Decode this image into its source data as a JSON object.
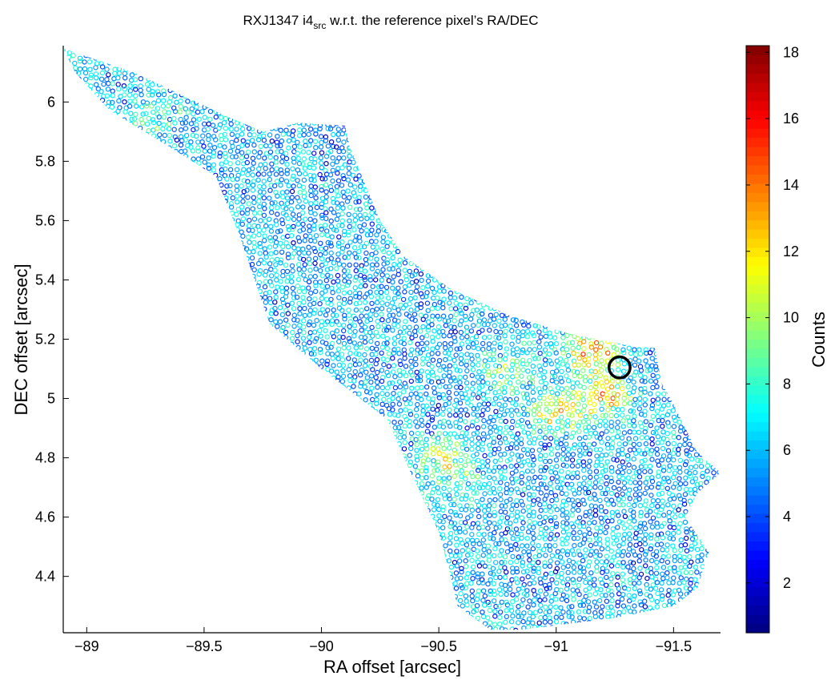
{
  "chart_data": {
    "type": "scatter",
    "title": {
      "prefix": "RXJ1347 i4",
      "subscript": "src",
      "suffix": " w.r.t. the reference pixel’s RA/DEC"
    },
    "xlabel": "RA offset [arcsec]",
    "ylabel": "DEC offset [arcsec]",
    "xlim": [
      -88.9,
      -91.7
    ],
    "ylim": [
      4.21,
      6.19
    ],
    "x_reversed": true,
    "xticks": [
      -89,
      -89.5,
      -90,
      -90.5,
      -91,
      -91.5
    ],
    "xtick_labels": [
      "−89",
      "−89.5",
      "−90",
      "−90.5",
      "−91",
      "−91.5"
    ],
    "yticks": [
      4.4,
      4.6,
      4.8,
      5,
      5.2,
      5.4,
      5.6,
      5.8,
      6
    ],
    "ytick_labels": [
      "4.4",
      "4.6",
      "4.8",
      "5",
      "5.2",
      "5.4",
      "5.6",
      "5.8",
      "6"
    ],
    "colorbar": {
      "label": "Counts",
      "range": [
        0.5,
        18.2
      ],
      "ticks": [
        2,
        4,
        6,
        8,
        10,
        12,
        14,
        16,
        18
      ],
      "tick_labels": [
        "2",
        "4",
        "6",
        "8",
        "10",
        "12",
        "14",
        "16",
        "18"
      ],
      "colormap": "jet"
    },
    "marker": {
      "style": "open-circle",
      "typical_counts": 6,
      "peak_counts": 18
    },
    "footprint_outline": [
      [
        -88.9,
        6.18
      ],
      [
        -89.2,
        6.1
      ],
      [
        -89.6,
        5.95
      ],
      [
        -89.75,
        5.9
      ],
      [
        -89.9,
        5.93
      ],
      [
        -90.1,
        5.92
      ],
      [
        -90.12,
        5.85
      ],
      [
        -90.25,
        5.6
      ],
      [
        -90.35,
        5.48
      ],
      [
        -90.55,
        5.37
      ],
      [
        -90.8,
        5.28
      ],
      [
        -91.05,
        5.22
      ],
      [
        -91.3,
        5.18
      ],
      [
        -91.42,
        5.17
      ],
      [
        -91.45,
        5.05
      ],
      [
        -91.5,
        4.98
      ],
      [
        -91.55,
        4.9
      ],
      [
        -91.6,
        4.82
      ],
      [
        -91.7,
        4.75
      ],
      [
        -91.6,
        4.68
      ],
      [
        -91.55,
        4.6
      ],
      [
        -91.65,
        4.48
      ],
      [
        -91.6,
        4.36
      ],
      [
        -91.5,
        4.3
      ],
      [
        -91.25,
        4.26
      ],
      [
        -91.05,
        4.24
      ],
      [
        -90.85,
        4.22
      ],
      [
        -90.72,
        4.22
      ],
      [
        -90.58,
        4.3
      ],
      [
        -90.55,
        4.4
      ],
      [
        -90.5,
        4.55
      ],
      [
        -90.38,
        4.75
      ],
      [
        -90.28,
        4.93
      ],
      [
        -90.0,
        5.1
      ],
      [
        -89.78,
        5.25
      ],
      [
        -89.65,
        5.55
      ],
      [
        -89.55,
        5.75
      ],
      [
        -89.35,
        5.85
      ],
      [
        -89.1,
        5.97
      ],
      [
        -88.95,
        6.1
      ]
    ],
    "hotspots": [
      {
        "x": -91.2,
        "y": 5.0,
        "counts": 15
      },
      {
        "x": -91.15,
        "y": 5.15,
        "counts": 16
      },
      {
        "x": -91.0,
        "y": 4.96,
        "counts": 14
      },
      {
        "x": -90.8,
        "y": 5.1,
        "counts": 11
      },
      {
        "x": -90.5,
        "y": 4.8,
        "counts": 12
      },
      {
        "x": -90.6,
        "y": 4.72,
        "counts": 10
      },
      {
        "x": -89.3,
        "y": 5.95,
        "counts": 9
      }
    ],
    "annotation_circle": {
      "x": -91.27,
      "y": 5.105,
      "radius_arcsec": 0.045
    }
  }
}
